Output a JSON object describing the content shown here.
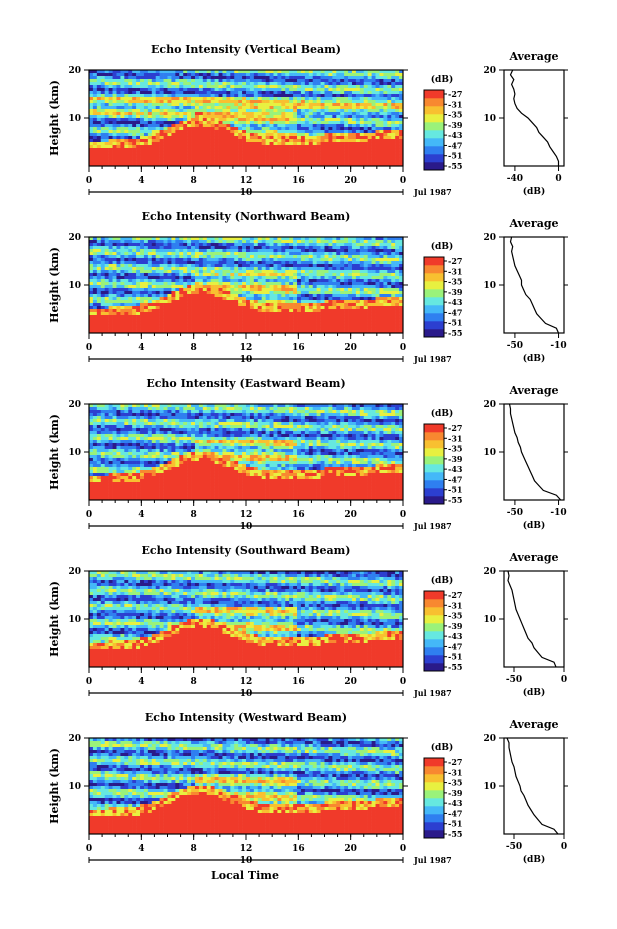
{
  "figure": {
    "xlabel": "Local Time",
    "date_label": "Jul 1987",
    "day_label": "10"
  },
  "chart_data": [
    {
      "type": "heatmap",
      "title": "Echo Intensity (Vertical Beam)",
      "ylabel": "Height (km)",
      "xlabel": "Local Time",
      "x_range": [
        0,
        24
      ],
      "x_ticks": [
        "0",
        "4",
        "8",
        "12",
        "16",
        "20",
        "0"
      ],
      "y_range": [
        0,
        20
      ],
      "y_ticks": [
        "10",
        "20"
      ],
      "colorbar": {
        "label": "(dB)",
        "ticks": [
          "-27",
          "-31",
          "-35",
          "-39",
          "-43",
          "-47",
          "-51",
          "-55"
        ],
        "colors": [
          "#2a1a8a",
          "#2c3fd0",
          "#2f7ff0",
          "#44b8f8",
          "#66e8e0",
          "#9af27a",
          "#e8f040",
          "#f8c030",
          "#f88830",
          "#f03a2a"
        ]
      },
      "average": {
        "title": "Average",
        "xlabel": "(dB)",
        "x_ticks": [
          "-40",
          "0"
        ],
        "x_range": [
          -50,
          5
        ],
        "heights": [
          0,
          1,
          2,
          3,
          4,
          5,
          6,
          7,
          8,
          9,
          10,
          11,
          12,
          13,
          14,
          15,
          16,
          17,
          18,
          19,
          20
        ],
        "values": [
          0,
          0,
          -2,
          -5,
          -8,
          -10,
          -14,
          -18,
          -20,
          -24,
          -28,
          -34,
          -38,
          -40,
          -41,
          -40,
          -41,
          -43,
          -41,
          -44,
          -42
        ]
      }
    },
    {
      "type": "heatmap",
      "title": "Echo Intensity (Northward Beam)",
      "ylabel": "Height (km)",
      "xlabel": "Local Time",
      "x_range": [
        0,
        24
      ],
      "x_ticks": [
        "0",
        "4",
        "8",
        "12",
        "16",
        "20",
        "0"
      ],
      "y_range": [
        0,
        20
      ],
      "y_ticks": [
        "10",
        "20"
      ],
      "colorbar": {
        "label": "(dB)",
        "ticks": [
          "-27",
          "-31",
          "-35",
          "-39",
          "-43",
          "-47",
          "-51",
          "-55"
        ],
        "colors": [
          "#2a1a8a",
          "#2c3fd0",
          "#2f7ff0",
          "#44b8f8",
          "#66e8e0",
          "#9af27a",
          "#e8f040",
          "#f8c030",
          "#f88830",
          "#f03a2a"
        ]
      },
      "average": {
        "title": "Average",
        "xlabel": "(dB)",
        "x_ticks": [
          "-50",
          "-10"
        ],
        "x_range": [
          -60,
          -5
        ],
        "heights": [
          0,
          1,
          2,
          3,
          4,
          5,
          6,
          7,
          8,
          9,
          10,
          11,
          12,
          13,
          14,
          15,
          16,
          17,
          18,
          19,
          20
        ],
        "values": [
          -10,
          -12,
          -22,
          -26,
          -30,
          -32,
          -34,
          -36,
          -40,
          -42,
          -44,
          -44,
          -46,
          -48,
          -50,
          -51,
          -52,
          -53,
          -52,
          -54,
          -53
        ]
      }
    },
    {
      "type": "heatmap",
      "title": "Echo Intensity (Eastward Beam)",
      "ylabel": "Height (km)",
      "xlabel": "Local Time",
      "x_range": [
        0,
        24
      ],
      "x_ticks": [
        "0",
        "4",
        "8",
        "12",
        "16",
        "20",
        "0"
      ],
      "y_range": [
        0,
        20
      ],
      "y_ticks": [
        "10",
        "20"
      ],
      "colorbar": {
        "label": "(dB)",
        "ticks": [
          "-27",
          "-31",
          "-35",
          "-39",
          "-43",
          "-47",
          "-51",
          "-55"
        ],
        "colors": [
          "#2a1a8a",
          "#2c3fd0",
          "#2f7ff0",
          "#44b8f8",
          "#66e8e0",
          "#9af27a",
          "#e8f040",
          "#f8c030",
          "#f88830",
          "#f03a2a"
        ]
      },
      "average": {
        "title": "Average",
        "xlabel": "(dB)",
        "x_ticks": [
          "-50",
          "-10"
        ],
        "x_range": [
          -60,
          -5
        ],
        "heights": [
          0,
          1,
          2,
          3,
          4,
          5,
          6,
          7,
          8,
          9,
          10,
          11,
          12,
          13,
          14,
          15,
          16,
          17,
          18,
          19,
          20
        ],
        "values": [
          -8,
          -12,
          -24,
          -28,
          -32,
          -34,
          -36,
          -38,
          -40,
          -42,
          -44,
          -45,
          -47,
          -48,
          -50,
          -51,
          -52,
          -53,
          -54,
          -54,
          -55
        ]
      }
    },
    {
      "type": "heatmap",
      "title": "Echo Intensity (Southward Beam)",
      "ylabel": "Height (km)",
      "xlabel": "Local Time",
      "x_range": [
        0,
        24
      ],
      "x_ticks": [
        "0",
        "4",
        "8",
        "12",
        "16",
        "20",
        "0"
      ],
      "y_range": [
        0,
        20
      ],
      "y_ticks": [
        "10",
        "20"
      ],
      "colorbar": {
        "label": "(dB)",
        "ticks": [
          "-27",
          "-31",
          "-35",
          "-39",
          "-43",
          "-47",
          "-51",
          "-55"
        ],
        "colors": [
          "#2a1a8a",
          "#2c3fd0",
          "#2f7ff0",
          "#44b8f8",
          "#66e8e0",
          "#9af27a",
          "#e8f040",
          "#f8c030",
          "#f88830",
          "#f03a2a"
        ]
      },
      "average": {
        "title": "Average",
        "xlabel": "(dB)",
        "x_ticks": [
          "-50",
          "0"
        ],
        "x_range": [
          -60,
          0
        ],
        "heights": [
          0,
          1,
          2,
          3,
          4,
          5,
          6,
          7,
          8,
          9,
          10,
          11,
          12,
          13,
          14,
          15,
          16,
          17,
          18,
          19,
          20
        ],
        "values": [
          -8,
          -10,
          -22,
          -26,
          -30,
          -32,
          -36,
          -38,
          -40,
          -42,
          -44,
          -46,
          -48,
          -49,
          -50,
          -51,
          -52,
          -54,
          -56,
          -55,
          -56
        ]
      }
    },
    {
      "type": "heatmap",
      "title": "Echo Intensity (Westward Beam)",
      "ylabel": "Height (km)",
      "xlabel": "Local Time",
      "x_range": [
        0,
        24
      ],
      "x_ticks": [
        "0",
        "4",
        "8",
        "12",
        "16",
        "20",
        "0"
      ],
      "y_range": [
        0,
        20
      ],
      "y_ticks": [
        "10",
        "20"
      ],
      "colorbar": {
        "label": "(dB)",
        "ticks": [
          "-27",
          "-31",
          "-35",
          "-39",
          "-43",
          "-47",
          "-51",
          "-55"
        ],
        "colors": [
          "#2a1a8a",
          "#2c3fd0",
          "#2f7ff0",
          "#44b8f8",
          "#66e8e0",
          "#9af27a",
          "#e8f040",
          "#f8c030",
          "#f88830",
          "#f03a2a"
        ]
      },
      "average": {
        "title": "Average",
        "xlabel": "(dB)",
        "x_ticks": [
          "-50",
          "0"
        ],
        "x_range": [
          -60,
          0
        ],
        "heights": [
          0,
          1,
          2,
          3,
          4,
          5,
          6,
          7,
          8,
          9,
          10,
          11,
          12,
          13,
          14,
          15,
          16,
          17,
          18,
          19,
          20
        ],
        "values": [
          -6,
          -10,
          -22,
          -26,
          -30,
          -33,
          -36,
          -38,
          -40,
          -43,
          -44,
          -46,
          -48,
          -49,
          -50,
          -52,
          -53,
          -54,
          -55,
          -55,
          -57
        ]
      }
    }
  ]
}
